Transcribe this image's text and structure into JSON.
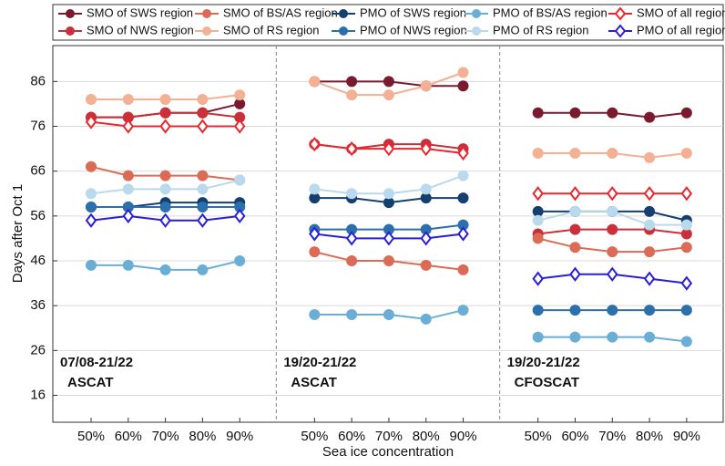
{
  "chart_data": {
    "type": "line",
    "y_label": "Days after Oct 1",
    "x_label": "Sea ice concentration",
    "categories": [
      "50%",
      "60%",
      "70%",
      "80%",
      "90%",
      "50%",
      "60%",
      "70%",
      "80%",
      "90%",
      "50%",
      "60%",
      "70%",
      "80%",
      "90%"
    ],
    "panels": [
      {
        "period": "07/08-21/22",
        "sensor": "ASCAT"
      },
      {
        "period": "19/20-21/22",
        "sensor": "ASCAT"
      },
      {
        "period": "19/20-21/22",
        "sensor": "CFOSCAT"
      }
    ],
    "ylim": [
      10,
      94
    ],
    "yticks": [
      16,
      26,
      36,
      46,
      56,
      66,
      76,
      86
    ],
    "grid": true,
    "legend": "top",
    "series": [
      {
        "name": "SMO of SWS region",
        "color": "#7a1a2f",
        "marker": "circle",
        "values": [
          78,
          78,
          79,
          79,
          81,
          86,
          86,
          86,
          85,
          85,
          79,
          79,
          79,
          78,
          79
        ]
      },
      {
        "name": "SMO of NWS region",
        "color": "#c9303a",
        "marker": "circle",
        "values": [
          78,
          78,
          79,
          79,
          78,
          72,
          71,
          72,
          72,
          71,
          52,
          53,
          53,
          53,
          52
        ]
      },
      {
        "name": "SMO of BS/AS region",
        "color": "#dc6b55",
        "marker": "circle",
        "values": [
          67,
          65,
          65,
          65,
          64,
          48,
          46,
          46,
          45,
          44,
          51,
          49,
          48,
          48,
          49
        ]
      },
      {
        "name": "SMO of RS region",
        "color": "#f4b093",
        "marker": "circle",
        "values": [
          82,
          82,
          82,
          82,
          83,
          86,
          83,
          83,
          85,
          88,
          70,
          70,
          70,
          69,
          70
        ]
      },
      {
        "name": "PMO of SWS region",
        "color": "#143f6e",
        "marker": "circle",
        "values": [
          58,
          58,
          59,
          59,
          59,
          60,
          60,
          59,
          60,
          60,
          57,
          57,
          57,
          57,
          55
        ]
      },
      {
        "name": "PMO of NWS region",
        "color": "#2c6fad",
        "marker": "circle",
        "values": [
          58,
          58,
          58,
          58,
          58,
          53,
          53,
          53,
          53,
          54,
          35,
          35,
          35,
          35,
          35
        ]
      },
      {
        "name": "PMO of BS/AS region",
        "color": "#6aaed6",
        "marker": "circle",
        "values": [
          45,
          45,
          44,
          44,
          46,
          34,
          34,
          34,
          33,
          35,
          29,
          29,
          29,
          29,
          28
        ]
      },
      {
        "name": "PMO of RS region",
        "color": "#b9d9ec",
        "marker": "circle",
        "values": [
          61,
          62,
          62,
          62,
          64,
          62,
          61,
          61,
          62,
          65,
          55,
          57,
          57,
          54,
          54
        ]
      },
      {
        "name": "SMO of all regions",
        "color": "#e8282e",
        "marker": "diamond",
        "values": [
          77,
          76,
          76,
          76,
          76,
          72,
          71,
          71,
          71,
          70,
          61,
          61,
          61,
          61,
          61
        ]
      },
      {
        "name": "PMO of all regions",
        "color": "#2a1fd6",
        "marker": "diamond",
        "values": [
          55,
          56,
          55,
          55,
          56,
          52,
          51,
          51,
          51,
          52,
          42,
          43,
          43,
          42,
          41
        ]
      }
    ]
  }
}
